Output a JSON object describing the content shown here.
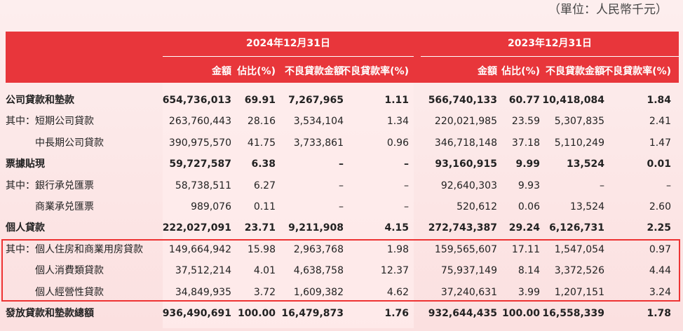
{
  "header": {
    "unit": "（單位：人民幣千元）",
    "groups": [
      "2024年12月31日",
      "2023年12月31日"
    ],
    "columns": [
      "金額",
      "佔比(%)",
      "不良貸款金額",
      "不良貸款率(%)",
      "金額",
      "佔比(%)",
      "不良貸款金額",
      "不良貸款率(%)"
    ]
  },
  "table": {
    "rows": [
      {
        "label": "公司貸款和墊款",
        "values": [
          "654,736,013",
          "69.91",
          "7,267,965",
          "1.11",
          "566,740,133",
          "60.77",
          "10,418,084",
          "1.84"
        ]
      },
      {
        "label": "其中：短期公司貸款",
        "values": [
          "263,760,443",
          "28.16",
          "3,534,104",
          "1.34",
          "220,021,985",
          "23.59",
          "5,307,835",
          "2.41"
        ]
      },
      {
        "label": "中長期公司貸款",
        "values": [
          "390,975,570",
          "41.75",
          "3,733,861",
          "0.96",
          "346,718,148",
          "37.18",
          "5,110,249",
          "1.47"
        ]
      },
      {
        "label": "票據貼現",
        "values": [
          "59,727,587",
          "6.38",
          "–",
          "–",
          "93,160,915",
          "9.99",
          "13,524",
          "0.01"
        ]
      },
      {
        "label": "其中：銀行承兑匯票",
        "values": [
          "58,738,511",
          "6.27",
          "–",
          "–",
          "92,640,303",
          "9.93",
          "–",
          "–"
        ]
      },
      {
        "label": "商業承兑匯票",
        "values": [
          "989,076",
          "0.11",
          "–",
          "–",
          "520,612",
          "0.06",
          "13,524",
          "2.60"
        ]
      },
      {
        "label": "個人貸款",
        "values": [
          "222,027,091",
          "23.71",
          "9,211,908",
          "4.15",
          "272,743,387",
          "29.24",
          "6,126,731",
          "2.25"
        ]
      },
      {
        "label": "其中：個人住房和商業用房貸款",
        "values": [
          "149,664,942",
          "15.98",
          "2,963,768",
          "1.98",
          "159,565,607",
          "17.11",
          "1,547,054",
          "0.97"
        ]
      },
      {
        "label": "個人消費類貸款",
        "values": [
          "37,512,214",
          "4.01",
          "4,638,758",
          "12.37",
          "75,937,149",
          "8.14",
          "3,372,526",
          "4.44"
        ]
      },
      {
        "label": "個人經營性貸款",
        "values": [
          "34,849,935",
          "3.72",
          "1,609,382",
          "4.62",
          "37,240,631",
          "3.99",
          "1,207,151",
          "3.24"
        ]
      },
      {
        "label": "發放貸款和墊款總額",
        "values": [
          "936,490,691",
          "100.00",
          "16,479,873",
          "1.76",
          "932,644,435",
          "100.00",
          "16,558,339",
          "1.78"
        ]
      }
    ]
  }
}
